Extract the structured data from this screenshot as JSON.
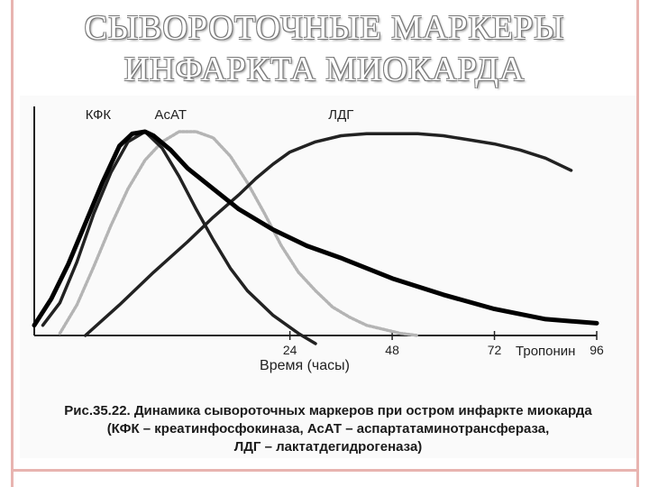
{
  "slide": {
    "title_line1": "СЫВОРОТОЧНЫЕ МАРКЕРЫ",
    "title_line2": "ИНФАРКТА МИОКАРДА"
  },
  "figure": {
    "caption_line1": "Рис.35.22. Динамика сывороточных маркеров при остром инфаркте миокарда",
    "caption_line2": "(КФК – креатинфосфокиназа, АсАТ – аспартатаминотрансфераза,",
    "caption_line3": "ЛДГ – лактатдегидрогеназа)"
  },
  "colors": {
    "title_fill": "#ffffff",
    "title_outline": "#7a7a7a",
    "frame": "#e8b4b0",
    "axis": "#222222",
    "kfk": "#222222",
    "asat": "#b4b4b4",
    "ldg": "#222222",
    "troponin": "#000000"
  },
  "chart_data": {
    "type": "line",
    "title": "",
    "xlabel": "Время (часы)",
    "ylabel": "",
    "xlim": [
      -36,
      96
    ],
    "ylim": [
      0,
      100
    ],
    "xticks": [
      24,
      48,
      72,
      96
    ],
    "grid": false,
    "series": [
      {
        "name": "КФК",
        "x": [
          -34,
          -30,
          -26,
          -22,
          -18,
          -14,
          -10,
          -6,
          -2,
          2,
          6,
          10,
          14,
          20,
          26,
          30
        ],
        "y": [
          5,
          16,
          36,
          60,
          80,
          95,
          100,
          92,
          78,
          62,
          47,
          33,
          22,
          10,
          1,
          -4
        ]
      },
      {
        "name": "АсАТ",
        "x": [
          -30,
          -26,
          -22,
          -18,
          -14,
          -10,
          -6,
          -2,
          2,
          6,
          10,
          14,
          18,
          22,
          26,
          30,
          34,
          38,
          42,
          46,
          50,
          54
        ],
        "y": [
          1,
          15,
          34,
          54,
          72,
          86,
          95,
          100,
          100,
          97,
          88,
          75,
          60,
          44,
          31,
          22,
          14,
          9,
          5,
          3,
          1,
          0
        ]
      },
      {
        "name": "ЛДГ",
        "x": [
          -24,
          -16,
          -8,
          0,
          6,
          12,
          16,
          20,
          24,
          30,
          36,
          42,
          48,
          54,
          60,
          66,
          72,
          78,
          84,
          90
        ],
        "y": [
          0,
          15,
          31,
          46,
          58,
          69,
          77,
          84,
          90,
          95,
          98,
          99,
          99,
          99,
          98,
          96,
          94,
          91,
          87,
          81
        ]
      },
      {
        "name": "Тропонин",
        "x": [
          -36,
          -32,
          -28,
          -24,
          -20,
          -16,
          -13,
          -10,
          -8,
          -4,
          0,
          6,
          12,
          20,
          28,
          36,
          48,
          60,
          72,
          84,
          96
        ],
        "y": [
          5,
          18,
          35,
          55,
          75,
          93,
          99,
          100,
          98,
          91,
          82,
          72,
          62,
          52,
          44,
          38,
          28,
          20,
          13,
          8,
          6
        ]
      }
    ]
  }
}
